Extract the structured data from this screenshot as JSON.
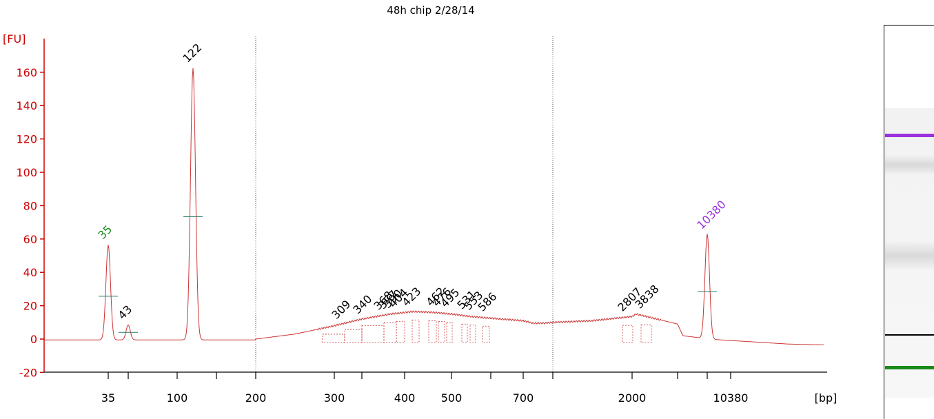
{
  "title": "48h chip 2/28/14",
  "chart_data": {
    "type": "line",
    "title": "48h chip 2/28/14",
    "ylabel": "[FU]",
    "xlabel": "[bp]",
    "ylim": [
      -20,
      170
    ],
    "y_ticks": [
      -20,
      0,
      20,
      40,
      60,
      80,
      100,
      120,
      140,
      160
    ],
    "x_ticks": [
      "35",
      "",
      "100",
      "",
      "200",
      "300",
      "",
      "400",
      "500",
      "",
      "700",
      "",
      "2000",
      "",
      "",
      "10380"
    ],
    "series_color": "#cc3333",
    "baseline_fu": -0.5,
    "peaks": [
      {
        "label": "35",
        "bp": 35,
        "height_fu": 57,
        "color": "#1a8a1a"
      },
      {
        "label": "43",
        "bp": 43,
        "height_fu": 9,
        "color": "#000000"
      },
      {
        "label": "122",
        "bp": 122,
        "height_fu": 163,
        "color": "#000000"
      },
      {
        "label": "10380",
        "bp": 10380,
        "height_fu": 63,
        "color": "#9b30e0"
      }
    ],
    "smear_labels": [
      "309",
      "340",
      "368",
      "377",
      "390",
      "404",
      "423",
      "462",
      "476",
      "495",
      "531",
      "553",
      "586",
      "2807",
      "3838"
    ],
    "smear_profile": [
      [
        200,
        0
      ],
      [
        250,
        3
      ],
      [
        300,
        8
      ],
      [
        340,
        12
      ],
      [
        380,
        15
      ],
      [
        420,
        16.5
      ],
      [
        460,
        16
      ],
      [
        500,
        15
      ],
      [
        550,
        13.5
      ],
      [
        600,
        12.5
      ],
      [
        700,
        11
      ],
      [
        800,
        9.5
      ],
      [
        900,
        9.5
      ],
      [
        1000,
        10
      ],
      [
        1500,
        11
      ],
      [
        2000,
        13.5
      ],
      [
        2800,
        15
      ],
      [
        3838,
        9
      ],
      [
        5000,
        2
      ],
      [
        8000,
        1
      ],
      [
        10380,
        0
      ],
      [
        15000,
        -3
      ],
      [
        17000,
        -3.5
      ]
    ]
  },
  "gel": {
    "bands": [
      {
        "name": "upper-marker",
        "color": "#9b30e0",
        "position": 0.28
      },
      {
        "name": "ladder-line",
        "color": "#000000",
        "position": 0.79
      },
      {
        "name": "lower-marker",
        "color": "#1a8a1a",
        "position": 0.87
      }
    ]
  }
}
